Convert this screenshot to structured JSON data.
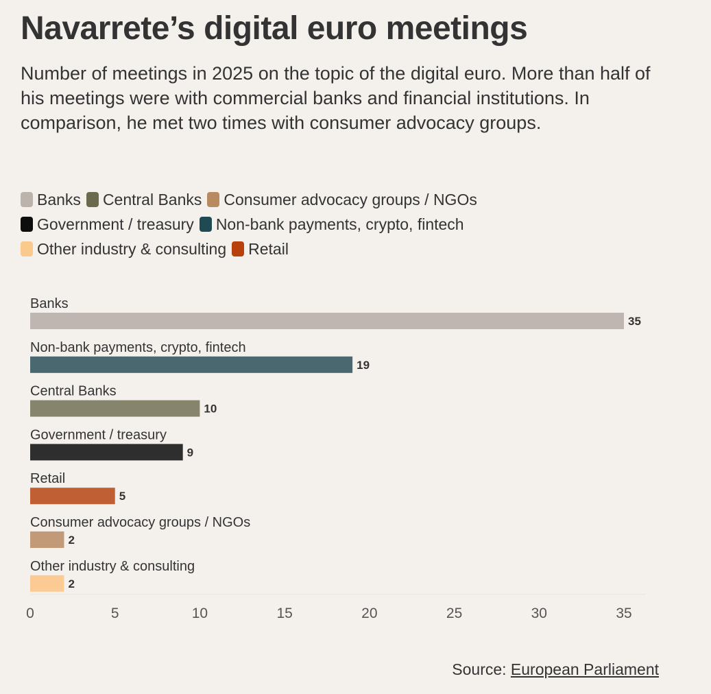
{
  "title": "Navarrete’s digital euro meetings",
  "subtitle": "Number of meetings in 2025 on the topic of the digital euro. More than half of his meetings were with commercial banks and financial institutions. In comparison, he met two times with consumer advocacy groups.",
  "legend": [
    {
      "label": "Banks",
      "color": "#bdb3ad"
    },
    {
      "label": "Central Banks",
      "color": "#6b6a4f"
    },
    {
      "label": "Consumer advocacy groups / NGOs",
      "color": "#b78a60"
    },
    {
      "label": "Government / treasury",
      "color": "#0d0d0d"
    },
    {
      "label": "Non-bank payments, crypto, fintech",
      "color": "#1f4a54"
    },
    {
      "label": "Other industry & consulting",
      "color": "#fcc98c"
    },
    {
      "label": "Retail",
      "color": "#b8400b"
    }
  ],
  "chart_data": {
    "type": "bar",
    "orientation": "horizontal",
    "categories": [
      "Banks",
      "Non-bank payments, crypto, fintech",
      "Central Banks",
      "Government / treasury",
      "Retail",
      "Consumer advocacy groups / NGOs",
      "Other industry & consulting"
    ],
    "values": [
      35,
      19,
      10,
      9,
      5,
      2,
      2
    ],
    "value_labels": [
      "35",
      "19",
      "10",
      "9",
      "5",
      "2",
      "2"
    ],
    "colors": [
      "#bfb6b1",
      "#496870",
      "#86846c",
      "#2e2e2e",
      "#c05f33",
      "#c39a78",
      "#fccb94"
    ],
    "xlim": [
      0,
      35
    ],
    "xticks": [
      0,
      5,
      10,
      15,
      20,
      25,
      30,
      35
    ],
    "xtick_labels": [
      "0",
      "5",
      "10",
      "15",
      "20",
      "25",
      "30",
      "35"
    ],
    "xlabel": "",
    "ylabel": "",
    "grid": false
  },
  "source": {
    "prefix": "Source: ",
    "link_text": "European Parliament"
  }
}
